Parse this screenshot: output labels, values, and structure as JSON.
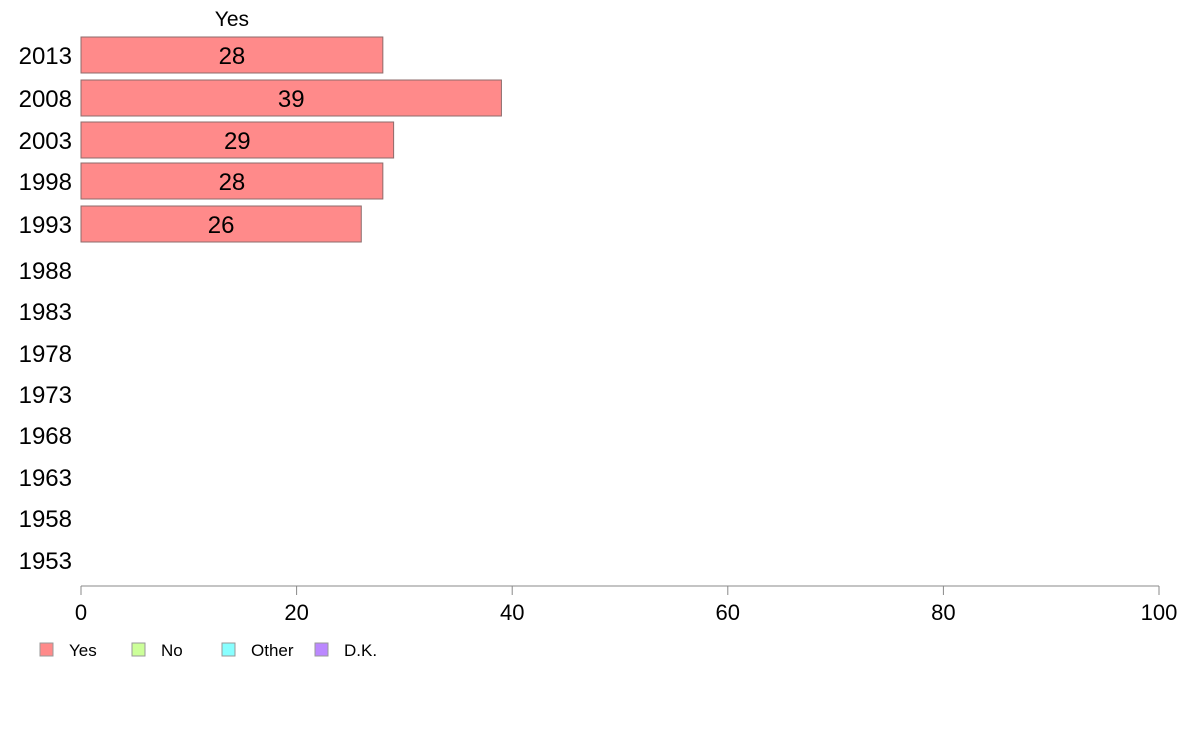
{
  "chart_data": {
    "type": "bar",
    "orientation": "horizontal",
    "categories": [
      "2013",
      "2008",
      "2003",
      "1998",
      "1993",
      "1988",
      "1983",
      "1978",
      "1973",
      "1968",
      "1963",
      "1958",
      "1953"
    ],
    "series": [
      {
        "name": "Yes",
        "color": "#ff8a8a",
        "values": [
          28,
          39,
          29,
          28,
          26,
          null,
          null,
          null,
          null,
          null,
          null,
          null,
          null
        ]
      },
      {
        "name": "No",
        "color": "#ccff99",
        "values": [
          null,
          null,
          null,
          null,
          null,
          null,
          null,
          null,
          null,
          null,
          null,
          null,
          null
        ]
      },
      {
        "name": "Other",
        "color": "#88ffff",
        "values": [
          null,
          null,
          null,
          null,
          null,
          null,
          null,
          null,
          null,
          null,
          null,
          null,
          null
        ]
      },
      {
        "name": "D.K.",
        "color": "#bb88ff",
        "values": [
          null,
          null,
          null,
          null,
          null,
          null,
          null,
          null,
          null,
          null,
          null,
          null,
          null
        ]
      }
    ],
    "column_header": "Yes",
    "xlim": [
      0,
      100
    ],
    "xticks": [
      0,
      20,
      40,
      60,
      80,
      100
    ],
    "grid": false,
    "legend_position": "bottom-left"
  }
}
